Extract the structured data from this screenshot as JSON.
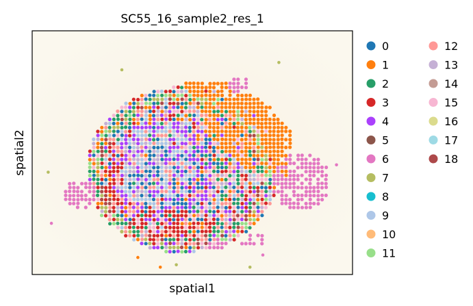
{
  "chart_data": {
    "type": "scatter",
    "title": "SC55_16_sample2_res_1",
    "xlabel": "spatial1",
    "ylabel": "spatial2",
    "grid": false,
    "legend_placement": "right-outside",
    "legend_columns": 2,
    "background_image": "tissue-histology",
    "categories": [
      "0",
      "1",
      "2",
      "3",
      "4",
      "5",
      "6",
      "7",
      "8",
      "9",
      "10",
      "11",
      "12",
      "13",
      "14",
      "15",
      "16",
      "17",
      "18"
    ],
    "colors": [
      "#1f77b4",
      "#ff7f0e",
      "#279e68",
      "#d62728",
      "#aa40fc",
      "#8c564b",
      "#e377c2",
      "#b5bd61",
      "#17becf",
      "#aec7e8",
      "#ffbb78",
      "#98df8a",
      "#ff9896",
      "#c5b0d5",
      "#c49c94",
      "#f7b6d2",
      "#dbdb8d",
      "#9edae5",
      "#ad494a"
    ],
    "regions": [
      {
        "category": "1",
        "shape": "polygon",
        "points": [
          [
            0.47,
            0.21
          ],
          [
            0.62,
            0.21
          ],
          [
            0.74,
            0.31
          ],
          [
            0.81,
            0.42
          ],
          [
            0.8,
            0.61
          ],
          [
            0.71,
            0.59
          ],
          [
            0.58,
            0.48
          ],
          [
            0.52,
            0.33
          ]
        ],
        "density": 0.85
      },
      {
        "category": "4",
        "shape": "ellipse",
        "cx": 0.4,
        "cy": 0.58,
        "rx": 0.16,
        "ry": 0.22,
        "density": 0.55
      },
      {
        "category": "9",
        "shape": "ellipse",
        "cx": 0.38,
        "cy": 0.55,
        "rx": 0.13,
        "ry": 0.18,
        "density": 0.35
      },
      {
        "category": "0",
        "shape": "ellipse",
        "cx": 0.42,
        "cy": 0.62,
        "rx": 0.12,
        "ry": 0.16,
        "density": 0.25
      },
      {
        "category": "3",
        "shape": "ellipse",
        "cx": 0.44,
        "cy": 0.8,
        "rx": 0.14,
        "ry": 0.07,
        "density": 0.55
      },
      {
        "category": "3",
        "shape": "ellipse",
        "cx": 0.25,
        "cy": 0.6,
        "rx": 0.04,
        "ry": 0.14,
        "density": 0.45
      },
      {
        "category": "6",
        "shape": "ellipse",
        "cx": 0.84,
        "cy": 0.62,
        "rx": 0.09,
        "ry": 0.12,
        "density": 0.75
      },
      {
        "category": "6",
        "shape": "ellipse",
        "cx": 0.15,
        "cy": 0.67,
        "rx": 0.05,
        "ry": 0.06,
        "density": 0.8
      },
      {
        "category": "6",
        "shape": "ellipse",
        "cx": 0.64,
        "cy": 0.22,
        "rx": 0.04,
        "ry": 0.03,
        "density": 0.7
      },
      {
        "category": "6",
        "shape": "ellipse",
        "cx": 0.69,
        "cy": 0.86,
        "rx": 0.04,
        "ry": 0.03,
        "density": 0.6
      },
      {
        "category": "6",
        "shape": "ellipse",
        "cx": 0.58,
        "cy": 0.88,
        "rx": 0.04,
        "ry": 0.025,
        "density": 0.6
      },
      {
        "category": "15",
        "shape": "ellipse",
        "cx": 0.36,
        "cy": 0.79,
        "rx": 0.06,
        "ry": 0.04,
        "density": 0.35
      },
      {
        "category": "13",
        "shape": "ellipse",
        "cx": 0.34,
        "cy": 0.56,
        "rx": 0.08,
        "ry": 0.12,
        "density": 0.2
      },
      {
        "category": "2",
        "shape": "ring",
        "cx": 0.46,
        "cy": 0.58,
        "rx": 0.27,
        "ry": 0.31,
        "density": 0.25
      },
      {
        "category": "7",
        "shape": "ring",
        "cx": 0.46,
        "cy": 0.58,
        "rx": 0.28,
        "ry": 0.32,
        "density": 0.2
      },
      {
        "category": "11",
        "shape": "ring",
        "cx": 0.46,
        "cy": 0.58,
        "rx": 0.29,
        "ry": 0.33,
        "density": 0.15
      },
      {
        "category": "12",
        "shape": "ellipse",
        "cx": 0.46,
        "cy": 0.58,
        "rx": 0.26,
        "ry": 0.3,
        "density": 0.08
      },
      {
        "category": "18",
        "shape": "ring",
        "cx": 0.46,
        "cy": 0.58,
        "rx": 0.27,
        "ry": 0.31,
        "density": 0.12
      }
    ],
    "scattered_points": [
      {
        "category": "7",
        "x": 0.28,
        "y": 0.16
      },
      {
        "category": "7",
        "x": 0.05,
        "y": 0.58
      },
      {
        "category": "6",
        "x": 0.06,
        "y": 0.79
      },
      {
        "category": "1",
        "x": 0.4,
        "y": 0.97
      },
      {
        "category": "7",
        "x": 0.45,
        "y": 0.96
      },
      {
        "category": "6",
        "x": 0.72,
        "y": 0.92
      },
      {
        "category": "7",
        "x": 0.68,
        "y": 0.97
      },
      {
        "category": "6",
        "x": 0.95,
        "y": 0.55
      },
      {
        "category": "1",
        "x": 0.33,
        "y": 0.93
      },
      {
        "category": "7",
        "x": 0.77,
        "y": 0.13
      }
    ],
    "xticks": [],
    "yticks": []
  }
}
